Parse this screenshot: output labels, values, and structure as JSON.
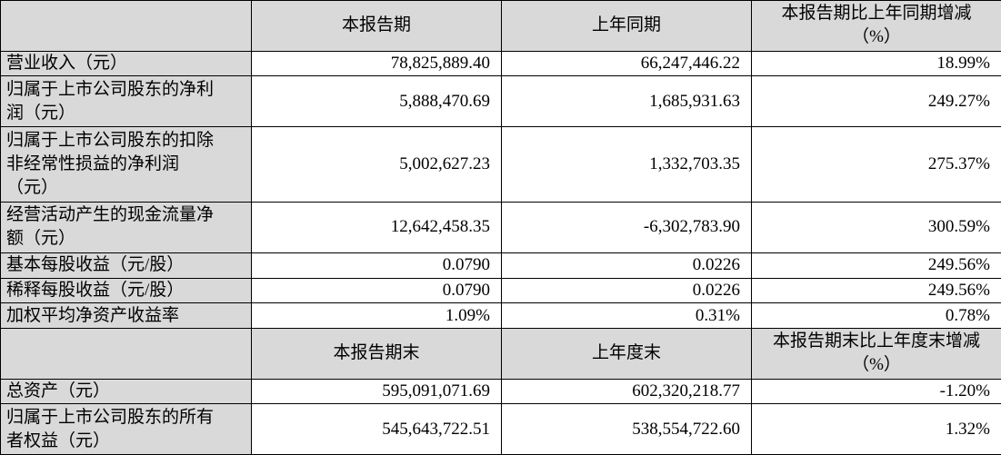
{
  "table": {
    "sections": [
      {
        "header": [
          [
            "本报告期"
          ],
          [
            "上年同期"
          ],
          [
            "本报告期比上年同期增减",
            "（%）"
          ]
        ],
        "rows": [
          {
            "label": [
              "营业收入（元）"
            ],
            "values": [
              "78,825,889.40",
              "66,247,446.22",
              "18.99%"
            ]
          },
          {
            "label": [
              "归属于上市公司股东的净利",
              "润（元）"
            ],
            "values": [
              "5,888,470.69",
              "1,685,931.63",
              "249.27%"
            ]
          },
          {
            "label": [
              "归属于上市公司股东的扣除",
              "非经常性损益的净利润",
              "（元）"
            ],
            "values": [
              "5,002,627.23",
              "1,332,703.35",
              "275.37%"
            ]
          },
          {
            "label": [
              "经营活动产生的现金流量净",
              "额（元）"
            ],
            "values": [
              "12,642,458.35",
              "-6,302,783.90",
              "300.59%"
            ]
          },
          {
            "label": [
              "基本每股收益（元/股）"
            ],
            "values": [
              "0.0790",
              "0.0226",
              "249.56%"
            ]
          },
          {
            "label": [
              "稀释每股收益（元/股）"
            ],
            "values": [
              "0.0790",
              "0.0226",
              "249.56%"
            ]
          },
          {
            "label": [
              "加权平均净资产收益率"
            ],
            "values": [
              "1.09%",
              "0.31%",
              "0.78%"
            ]
          }
        ]
      },
      {
        "header": [
          [
            "本报告期末"
          ],
          [
            "上年度末"
          ],
          [
            "本报告期末比上年度末增减",
            "（%）"
          ]
        ],
        "rows": [
          {
            "label": [
              "总资产（元）"
            ],
            "values": [
              "595,091,071.69",
              "602,320,218.77",
              "-1.20%"
            ]
          },
          {
            "label": [
              "归属于上市公司股东的所有",
              "者权益（元）"
            ],
            "values": [
              "545,643,722.51",
              "538,554,722.60",
              "1.32%"
            ]
          }
        ]
      }
    ]
  }
}
